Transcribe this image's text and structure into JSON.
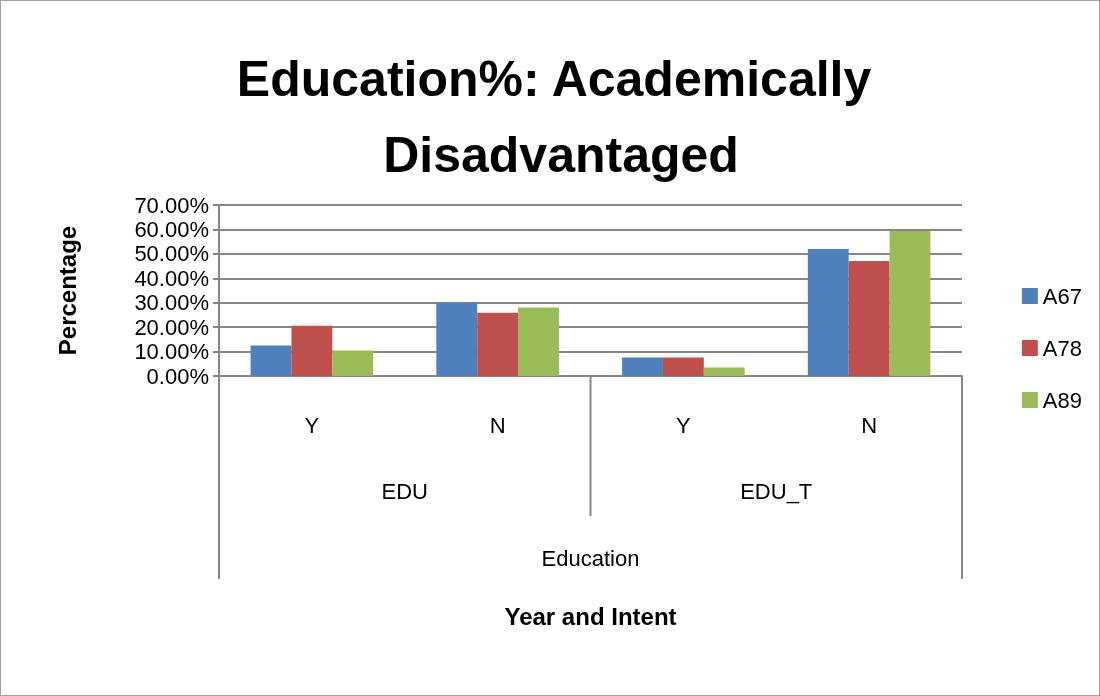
{
  "chart_data": {
    "type": "bar",
    "title": "Education%: Academically Disadvantaged",
    "ylabel": "Percentage",
    "categories": [
      "Y",
      "N",
      "Y",
      "N"
    ],
    "series": [
      {
        "name": "A67",
        "color": "#4f81bd",
        "values": [
          12.5,
          30.1,
          7.6,
          52.0
        ]
      },
      {
        "name": "A78",
        "color": "#c0504d",
        "values": [
          20.6,
          25.9,
          7.6,
          47.1
        ]
      },
      {
        "name": "A89",
        "color": "#9bbb59",
        "values": [
          10.4,
          28.0,
          3.5,
          59.4
        ]
      }
    ],
    "annotations": [
      "EDU",
      "EDU_T",
      "Education",
      "Year and Intent"
    ],
    "ylim": [
      0,
      70
    ],
    "yticks": [
      {
        "value": 0,
        "label": "0.00%"
      },
      {
        "value": 10,
        "label": "10.00%"
      },
      {
        "value": 20,
        "label": "20.00%"
      },
      {
        "value": 30,
        "label": "30.00%"
      },
      {
        "value": 40,
        "label": "40.00%"
      },
      {
        "value": 50,
        "label": "50.00%"
      },
      {
        "value": 60,
        "label": "60.00%"
      },
      {
        "value": 70,
        "label": "70.00%"
      }
    ],
    "grid": "y",
    "legend": "right"
  }
}
